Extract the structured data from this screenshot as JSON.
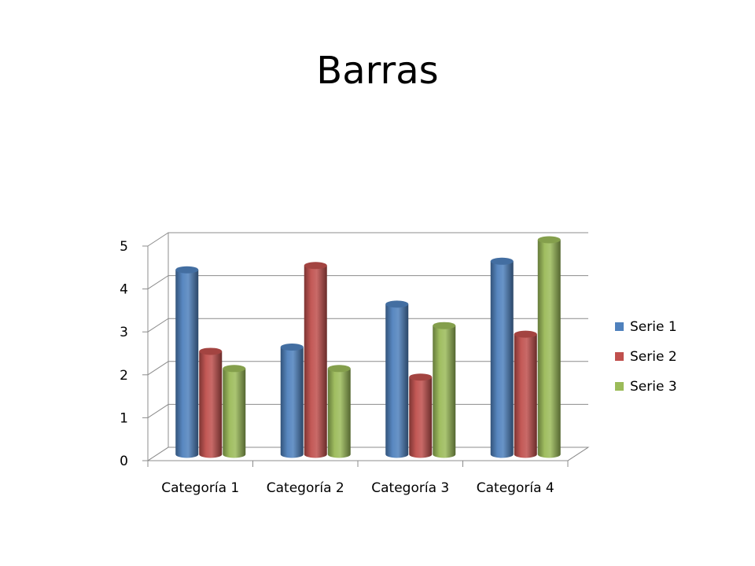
{
  "slide": {
    "title": "Barras"
  },
  "chart_data": {
    "type": "bar",
    "title": "",
    "xlabel": "",
    "ylabel": "",
    "categories": [
      "Categoría 1",
      "Categoría 2",
      "Categoría 3",
      "Categoría 4"
    ],
    "series": [
      {
        "name": "Serie 1",
        "values": [
          4.3,
          2.5,
          3.5,
          4.5
        ],
        "color": "#4F81BD"
      },
      {
        "name": "Serie 2",
        "values": [
          2.4,
          4.4,
          1.8,
          2.8
        ],
        "color": "#C0504D"
      },
      {
        "name": "Serie 3",
        "values": [
          2.0,
          2.0,
          3.0,
          5.0
        ],
        "color": "#9BBB59"
      }
    ],
    "ylim": [
      0,
      5
    ],
    "yticks": [
      0,
      1,
      2,
      3,
      4,
      5
    ],
    "grid": true,
    "legend": "right",
    "style": "3d-cylinder"
  }
}
